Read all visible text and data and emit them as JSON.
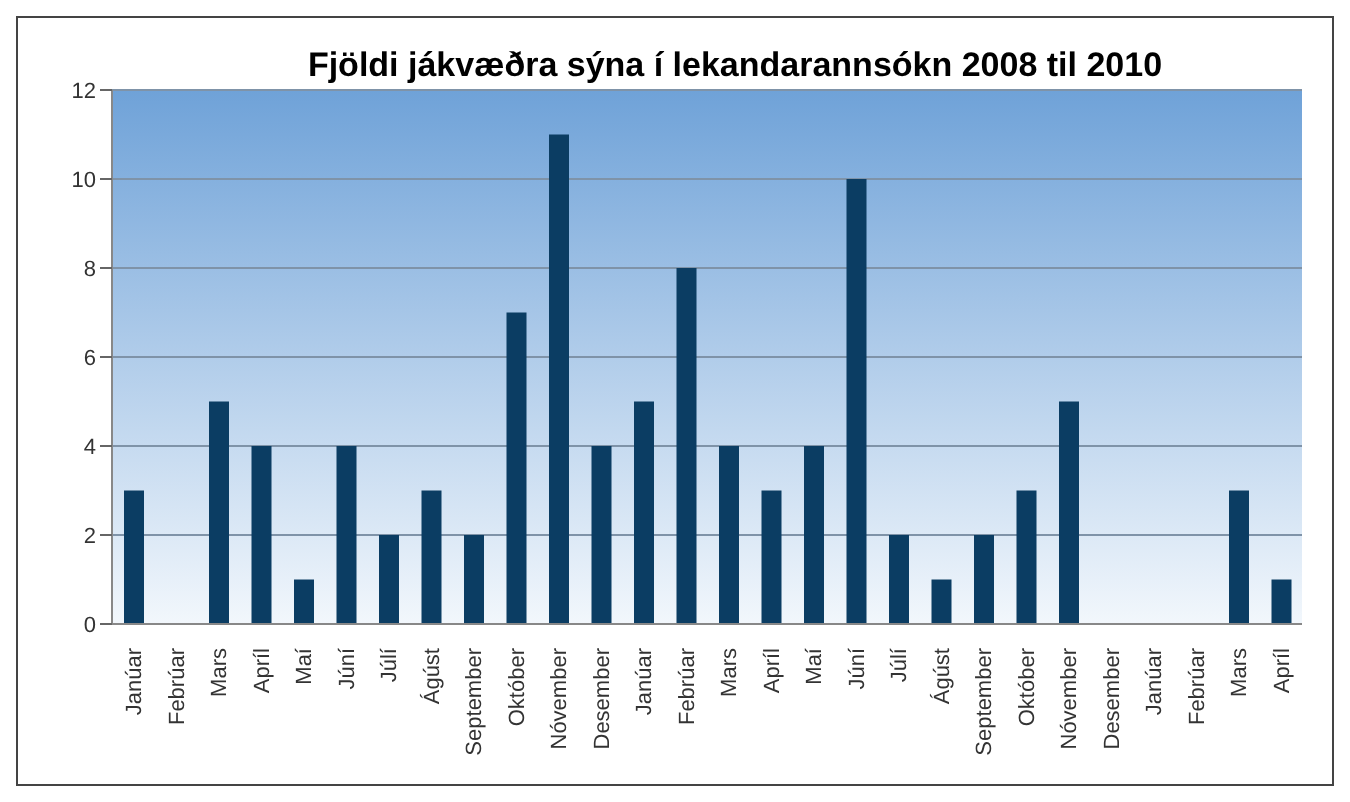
{
  "chart_data": {
    "type": "bar",
    "title": "Fjöldi jákvæðra sýna í lekandarannsókn 2008 til 2010",
    "categories": [
      "Janúar",
      "Febrúar",
      "Mars",
      "Apríl",
      "Maí",
      "Júní",
      "Júlí",
      "Ágúst",
      "September",
      "Október",
      "Nóvember",
      "Desember",
      "Janúar",
      "Febrúar",
      "Mars",
      "Apríl",
      "Maí",
      "Júní",
      "Júlí",
      "Ágúst",
      "September",
      "Október",
      "Nóvember",
      "Desember",
      "Janúar",
      "Febrúar",
      "Mars",
      "Apríl"
    ],
    "values": [
      3,
      0,
      5,
      4,
      1,
      4,
      2,
      3,
      2,
      7,
      11,
      4,
      5,
      8,
      4,
      3,
      4,
      10,
      2,
      1,
      2,
      3,
      5,
      0,
      0,
      0,
      3,
      1
    ],
    "color": "#0b3d63",
    "ylim": [
      0,
      12
    ],
    "yticks": [
      0,
      2,
      4,
      6,
      8,
      10,
      12
    ],
    "grid": "y"
  }
}
